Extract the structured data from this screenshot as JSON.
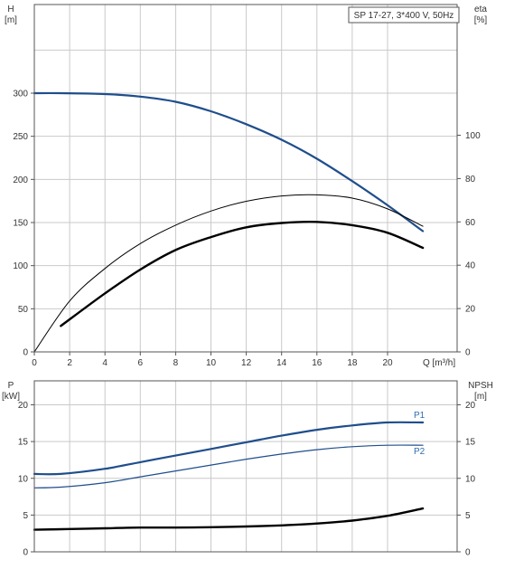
{
  "colors": {
    "grid": "#c9c9c9",
    "axis": "#555555",
    "head": "#1f4e8c",
    "eta": "#000000",
    "p1": "#1f4e8c",
    "p2": "#1f4e8c",
    "npsh": "#000000",
    "text": "#333333",
    "label_series": "#2e6db4"
  },
  "chart_data": [
    {
      "id": "top",
      "type": "line",
      "legend_box": "SP 17-27, 3*400 V, 50Hz",
      "left_axis": {
        "label_line1": "H",
        "label_line2": "[m]",
        "ylim": [
          0,
          300
        ],
        "ticks": [
          0,
          50,
          100,
          150,
          200,
          250,
          300
        ],
        "tick_labels": [
          "0",
          "50",
          "100",
          "150",
          "200",
          "250",
          "300"
        ]
      },
      "right_axis": {
        "label_line1": "eta",
        "label_line2": "[%]",
        "ylim": [
          0,
          120
        ],
        "ticks": [
          0,
          20,
          40,
          60,
          80,
          100
        ],
        "tick_labels": [
          "0",
          "20",
          "40",
          "60",
          "80",
          "100"
        ]
      },
      "x_axis": {
        "label": "Q [m³/h]",
        "xlim": [
          0,
          22
        ],
        "ticks": [
          0,
          2,
          4,
          6,
          8,
          10,
          12,
          14,
          16,
          18,
          20
        ],
        "tick_labels": [
          "0",
          "2",
          "4",
          "6",
          "8",
          "10",
          "12",
          "14",
          "16",
          "18",
          "20"
        ]
      },
      "grid": true,
      "series": [
        {
          "key": "head",
          "axis": "left",
          "x": [
            0,
            1.5,
            4,
            6,
            8,
            10,
            12,
            14,
            16,
            18,
            20,
            22
          ],
          "y": [
            300,
            300,
            299,
            296,
            290,
            279,
            264,
            246,
            224,
            198,
            170,
            140
          ]
        },
        {
          "key": "eta_thin",
          "axis": "right",
          "x": [
            0,
            2,
            4,
            6,
            8,
            10,
            12,
            14,
            16,
            18,
            20,
            22
          ],
          "y": [
            0,
            23.5,
            38.5,
            50,
            58.5,
            65,
            69.5,
            72.0,
            72.5,
            71,
            66,
            58
          ]
        },
        {
          "key": "eta_thick",
          "axis": "right",
          "x": [
            1.5,
            4,
            6,
            8,
            10,
            12,
            14,
            16,
            18,
            20,
            22
          ],
          "y": [
            12,
            27,
            38,
            47,
            53,
            57.5,
            59.5,
            60,
            58.5,
            55,
            48
          ]
        }
      ]
    },
    {
      "id": "bottom",
      "type": "line",
      "left_axis": {
        "label_line1": "P",
        "label_line2": "[kW]",
        "ylim": [
          0,
          22
        ],
        "ticks": [
          0,
          5,
          10,
          15,
          20
        ],
        "tick_labels": [
          "0",
          "5",
          "10",
          "15",
          "20"
        ]
      },
      "right_axis": {
        "label_line1": "NPSH",
        "label_line2": "[m]",
        "ylim": [
          0,
          22
        ],
        "ticks": [
          0,
          5,
          10,
          15,
          20
        ],
        "tick_labels": [
          "0",
          "5",
          "10",
          "15",
          "20"
        ]
      },
      "x_axis": {
        "xlim": [
          0,
          22
        ]
      },
      "grid": true,
      "series": [
        {
          "key": "p1",
          "name": "P1",
          "axis": "left",
          "x": [
            0,
            1.5,
            4,
            6,
            8,
            10,
            12,
            14,
            16,
            18,
            20,
            22
          ],
          "y": [
            10.6,
            10.6,
            11.3,
            12.2,
            13.1,
            14.0,
            14.9,
            15.8,
            16.6,
            17.2,
            17.6,
            17.6
          ]
        },
        {
          "key": "p2",
          "name": "P2",
          "axis": "left",
          "x": [
            0,
            1.5,
            4,
            6,
            8,
            10,
            12,
            14,
            16,
            18,
            20,
            22
          ],
          "y": [
            8.7,
            8.8,
            9.4,
            10.2,
            11.0,
            11.8,
            12.6,
            13.3,
            13.9,
            14.3,
            14.5,
            14.5
          ]
        },
        {
          "key": "npsh",
          "axis": "right",
          "x": [
            0,
            2,
            4,
            6,
            8,
            10,
            12,
            14,
            16,
            18,
            20,
            22
          ],
          "y": [
            3.0,
            3.1,
            3.2,
            3.3,
            3.3,
            3.35,
            3.45,
            3.6,
            3.85,
            4.25,
            4.9,
            5.9
          ]
        }
      ]
    }
  ]
}
